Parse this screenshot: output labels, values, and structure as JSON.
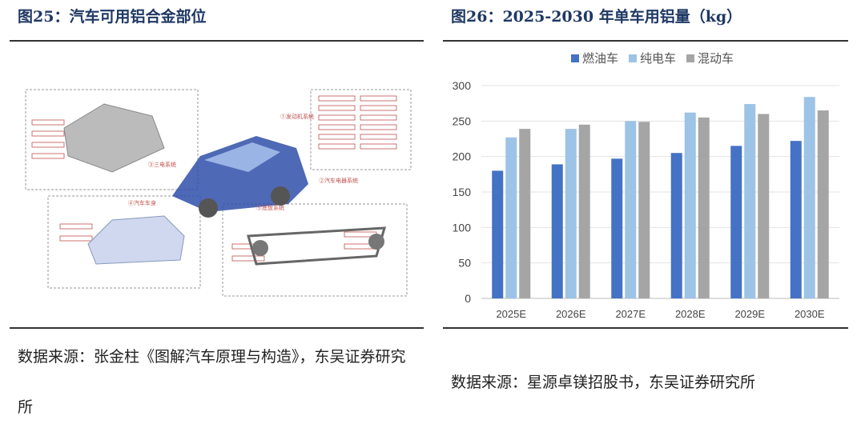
{
  "left_figure": {
    "title": "图25：汽车可用铝合金部位",
    "labels": [
      "①发动机系统",
      "②汽车电器系统",
      "③三电系统",
      "④汽车车身",
      "⑤底盘系统"
    ],
    "source": "数据来源：张金柱《图解汽车原理与构造》，东吴证券研究所"
  },
  "chart_data": {
    "type": "bar",
    "title": "图26：2025-2030 年单车用铝量（kg）",
    "categories": [
      "2025E",
      "2026E",
      "2027E",
      "2028E",
      "2029E",
      "2030E"
    ],
    "series": [
      {
        "name": "燃油车",
        "color": "#4472c4",
        "values": [
          180,
          189,
          197,
          205,
          215,
          222
        ]
      },
      {
        "name": "纯电车",
        "color": "#9dc3e6",
        "values": [
          227,
          239,
          250,
          262,
          274,
          284
        ]
      },
      {
        "name": "混动车",
        "color": "#a5a5a5",
        "values": [
          239,
          245,
          249,
          255,
          260,
          265
        ]
      }
    ],
    "ylim": [
      0,
      300
    ],
    "yticks": [
      0,
      50,
      100,
      150,
      200,
      250,
      300
    ],
    "grid": true,
    "legend": "top"
  },
  "right_source": "数据来源：星源卓镁招股书，东吴证券研究所"
}
